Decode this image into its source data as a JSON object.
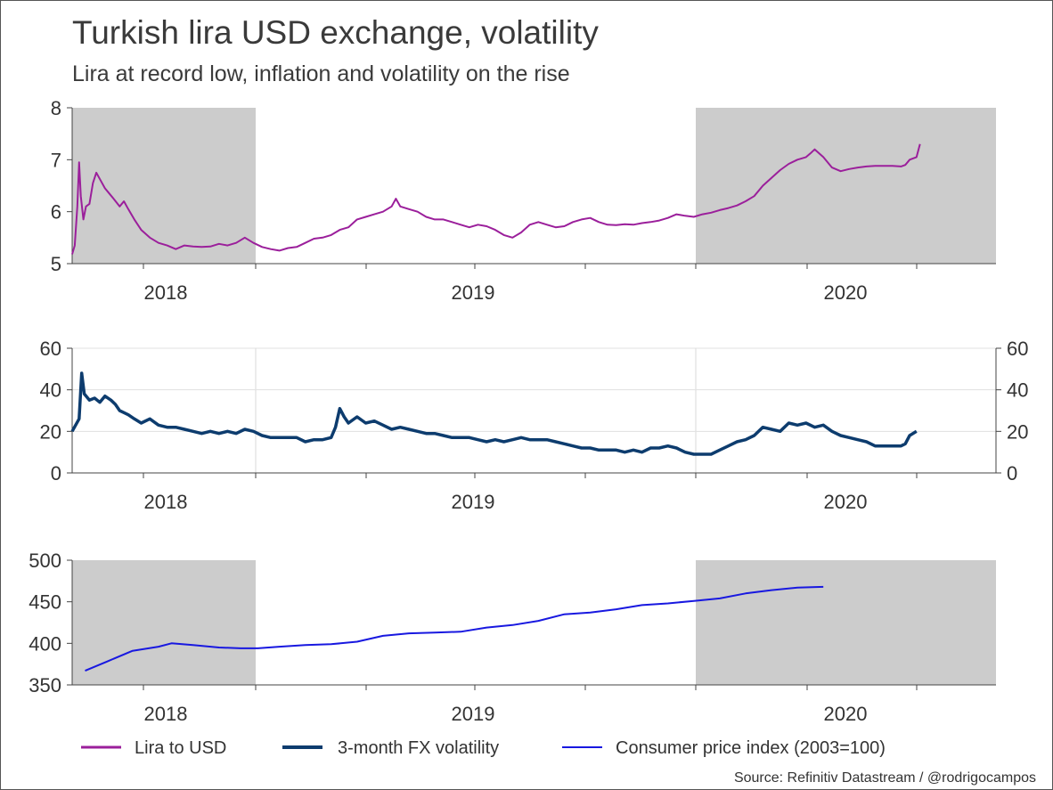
{
  "title": "Turkish lira USD exchange, volatility",
  "subtitle": "Lira at record low, inflation and volatility on the rise",
  "source": "Source: Refinitiv Datastream  / @rodrigocampos",
  "colors": {
    "lira": "#9b1f9b",
    "vol": "#0d3c6e",
    "cpi": "#1818e0",
    "shade": "#cccccc"
  },
  "chart_data": [
    {
      "type": "line",
      "name": "lira",
      "series_name": "Lira to USD",
      "ylim": [
        5,
        8
      ],
      "yticks": [
        "5",
        "6",
        "7",
        "8"
      ],
      "xlabels": [
        "2018",
        "2019",
        "2020"
      ],
      "shaded_periods": [
        [
          "2017-10",
          "2018-04"
        ],
        [
          "2019-07",
          "2020-05"
        ]
      ],
      "points": [
        [
          0.0,
          5.18
        ],
        [
          0.03,
          5.35
        ],
        [
          0.06,
          6.1
        ],
        [
          0.08,
          6.95
        ],
        [
          0.1,
          6.3
        ],
        [
          0.13,
          5.85
        ],
        [
          0.16,
          6.1
        ],
        [
          0.2,
          6.15
        ],
        [
          0.24,
          6.55
        ],
        [
          0.28,
          6.75
        ],
        [
          0.33,
          6.6
        ],
        [
          0.38,
          6.45
        ],
        [
          0.43,
          6.35
        ],
        [
          0.48,
          6.25
        ],
        [
          0.55,
          6.1
        ],
        [
          0.6,
          6.2
        ],
        [
          0.65,
          6.05
        ],
        [
          0.72,
          5.85
        ],
        [
          0.8,
          5.65
        ],
        [
          0.9,
          5.5
        ],
        [
          1.0,
          5.4
        ],
        [
          1.1,
          5.35
        ],
        [
          1.2,
          5.28
        ],
        [
          1.3,
          5.35
        ],
        [
          1.4,
          5.33
        ],
        [
          1.5,
          5.32
        ],
        [
          1.6,
          5.33
        ],
        [
          1.7,
          5.38
        ],
        [
          1.8,
          5.35
        ],
        [
          1.9,
          5.4
        ],
        [
          2.0,
          5.5
        ],
        [
          2.1,
          5.4
        ],
        [
          2.2,
          5.32
        ],
        [
          2.3,
          5.28
        ],
        [
          2.4,
          5.25
        ],
        [
          2.5,
          5.3
        ],
        [
          2.6,
          5.32
        ],
        [
          2.7,
          5.4
        ],
        [
          2.8,
          5.48
        ],
        [
          2.9,
          5.5
        ],
        [
          3.0,
          5.55
        ],
        [
          3.1,
          5.65
        ],
        [
          3.2,
          5.7
        ],
        [
          3.3,
          5.85
        ],
        [
          3.4,
          5.9
        ],
        [
          3.5,
          5.95
        ],
        [
          3.6,
          6.0
        ],
        [
          3.7,
          6.1
        ],
        [
          3.75,
          6.25
        ],
        [
          3.8,
          6.1
        ],
        [
          3.9,
          6.05
        ],
        [
          4.0,
          6.0
        ],
        [
          4.1,
          5.9
        ],
        [
          4.2,
          5.85
        ],
        [
          4.3,
          5.85
        ],
        [
          4.4,
          5.8
        ],
        [
          4.5,
          5.75
        ],
        [
          4.6,
          5.7
        ],
        [
          4.7,
          5.75
        ],
        [
          4.8,
          5.72
        ],
        [
          4.9,
          5.65
        ],
        [
          5.0,
          5.55
        ],
        [
          5.1,
          5.5
        ],
        [
          5.2,
          5.6
        ],
        [
          5.3,
          5.75
        ],
        [
          5.4,
          5.8
        ],
        [
          5.5,
          5.75
        ],
        [
          5.6,
          5.7
        ],
        [
          5.7,
          5.72
        ],
        [
          5.8,
          5.8
        ],
        [
          5.9,
          5.85
        ],
        [
          6.0,
          5.88
        ],
        [
          6.1,
          5.8
        ],
        [
          6.2,
          5.75
        ],
        [
          6.3,
          5.74
        ],
        [
          6.4,
          5.76
        ],
        [
          6.5,
          5.75
        ],
        [
          6.6,
          5.78
        ],
        [
          6.7,
          5.8
        ],
        [
          6.8,
          5.83
        ],
        [
          6.9,
          5.88
        ],
        [
          7.0,
          5.95
        ],
        [
          7.1,
          5.92
        ],
        [
          7.2,
          5.9
        ],
        [
          7.3,
          5.95
        ],
        [
          7.4,
          5.98
        ],
        [
          7.5,
          6.03
        ],
        [
          7.6,
          6.07
        ],
        [
          7.7,
          6.12
        ],
        [
          7.8,
          6.2
        ],
        [
          7.9,
          6.3
        ],
        [
          8.0,
          6.5
        ],
        [
          8.1,
          6.65
        ],
        [
          8.2,
          6.8
        ],
        [
          8.3,
          6.92
        ],
        [
          8.4,
          7.0
        ],
        [
          8.5,
          7.05
        ],
        [
          8.55,
          7.12
        ],
        [
          8.6,
          7.2
        ],
        [
          8.7,
          7.05
        ],
        [
          8.8,
          6.85
        ],
        [
          8.9,
          6.78
        ],
        [
          9.0,
          6.82
        ],
        [
          9.1,
          6.85
        ],
        [
          9.2,
          6.87
        ],
        [
          9.3,
          6.88
        ],
        [
          9.4,
          6.88
        ],
        [
          9.5,
          6.88
        ],
        [
          9.6,
          6.87
        ],
        [
          9.65,
          6.9
        ],
        [
          9.7,
          7.0
        ],
        [
          9.78,
          7.05
        ],
        [
          9.82,
          7.3
        ]
      ]
    },
    {
      "type": "line",
      "name": "vol",
      "series_name": "3-month FX volatility",
      "ylim": [
        0,
        60
      ],
      "yticks": [
        "0",
        "20",
        "40",
        "60"
      ],
      "xlabels": [
        "2018",
        "2019",
        "2020"
      ],
      "points": [
        [
          0.0,
          20
        ],
        [
          0.04,
          23
        ],
        [
          0.08,
          26
        ],
        [
          0.11,
          48
        ],
        [
          0.14,
          38
        ],
        [
          0.2,
          35
        ],
        [
          0.26,
          36
        ],
        [
          0.32,
          34
        ],
        [
          0.38,
          37
        ],
        [
          0.45,
          35
        ],
        [
          0.5,
          33
        ],
        [
          0.55,
          30
        ],
        [
          0.6,
          29
        ],
        [
          0.65,
          28
        ],
        [
          0.72,
          26
        ],
        [
          0.8,
          24
        ],
        [
          0.9,
          26
        ],
        [
          1.0,
          23
        ],
        [
          1.1,
          22
        ],
        [
          1.2,
          22
        ],
        [
          1.3,
          21
        ],
        [
          1.4,
          20
        ],
        [
          1.5,
          19
        ],
        [
          1.6,
          20
        ],
        [
          1.7,
          19
        ],
        [
          1.8,
          20
        ],
        [
          1.9,
          19
        ],
        [
          2.0,
          21
        ],
        [
          2.1,
          20
        ],
        [
          2.2,
          18
        ],
        [
          2.3,
          17
        ],
        [
          2.4,
          17
        ],
        [
          2.5,
          17
        ],
        [
          2.6,
          17
        ],
        [
          2.7,
          15
        ],
        [
          2.8,
          16
        ],
        [
          2.9,
          16
        ],
        [
          3.0,
          17
        ],
        [
          3.05,
          22
        ],
        [
          3.1,
          31
        ],
        [
          3.15,
          27
        ],
        [
          3.2,
          24
        ],
        [
          3.3,
          27
        ],
        [
          3.4,
          24
        ],
        [
          3.5,
          25
        ],
        [
          3.6,
          23
        ],
        [
          3.7,
          21
        ],
        [
          3.8,
          22
        ],
        [
          3.9,
          21
        ],
        [
          4.0,
          20
        ],
        [
          4.1,
          19
        ],
        [
          4.2,
          19
        ],
        [
          4.3,
          18
        ],
        [
          4.4,
          17
        ],
        [
          4.5,
          17
        ],
        [
          4.6,
          17
        ],
        [
          4.7,
          16
        ],
        [
          4.8,
          15
        ],
        [
          4.9,
          16
        ],
        [
          5.0,
          15
        ],
        [
          5.1,
          16
        ],
        [
          5.2,
          17
        ],
        [
          5.3,
          16
        ],
        [
          5.4,
          16
        ],
        [
          5.5,
          16
        ],
        [
          5.6,
          15
        ],
        [
          5.7,
          14
        ],
        [
          5.8,
          13
        ],
        [
          5.9,
          12
        ],
        [
          6.0,
          12
        ],
        [
          6.1,
          11
        ],
        [
          6.2,
          11
        ],
        [
          6.3,
          11
        ],
        [
          6.4,
          10
        ],
        [
          6.5,
          11
        ],
        [
          6.6,
          10
        ],
        [
          6.7,
          12
        ],
        [
          6.8,
          12
        ],
        [
          6.9,
          13
        ],
        [
          7.0,
          12
        ],
        [
          7.1,
          10
        ],
        [
          7.2,
          9
        ],
        [
          7.3,
          9
        ],
        [
          7.4,
          9
        ],
        [
          7.5,
          11
        ],
        [
          7.6,
          13
        ],
        [
          7.7,
          15
        ],
        [
          7.8,
          16
        ],
        [
          7.9,
          18
        ],
        [
          8.0,
          22
        ],
        [
          8.1,
          21
        ],
        [
          8.2,
          20
        ],
        [
          8.3,
          24
        ],
        [
          8.4,
          23
        ],
        [
          8.5,
          24
        ],
        [
          8.6,
          22
        ],
        [
          8.7,
          23
        ],
        [
          8.8,
          20
        ],
        [
          8.9,
          18
        ],
        [
          9.0,
          17
        ],
        [
          9.1,
          16
        ],
        [
          9.2,
          15
        ],
        [
          9.3,
          13
        ],
        [
          9.4,
          13
        ],
        [
          9.5,
          13
        ],
        [
          9.6,
          13
        ],
        [
          9.65,
          14
        ],
        [
          9.7,
          18
        ],
        [
          9.78,
          20
        ]
      ]
    },
    {
      "type": "line",
      "name": "cpi",
      "series_name": "Consumer price index (2003=100)",
      "ylim": [
        350,
        500
      ],
      "yticks": [
        "350",
        "400",
        "450",
        "500"
      ],
      "xlabels": [
        "2018",
        "2019",
        "2020"
      ],
      "shaded_periods": [
        [
          "2017-10",
          "2018-04"
        ],
        [
          "2019-07",
          "2020-05"
        ]
      ],
      "points": [
        [
          0.15,
          367
        ],
        [
          0.4,
          378
        ],
        [
          0.7,
          391
        ],
        [
          1.0,
          396
        ],
        [
          1.15,
          400
        ],
        [
          1.4,
          398
        ],
        [
          1.7,
          395
        ],
        [
          1.95,
          394
        ],
        [
          2.15,
          394
        ],
        [
          2.4,
          396
        ],
        [
          2.7,
          398
        ],
        [
          3.0,
          399
        ],
        [
          3.3,
          402
        ],
        [
          3.6,
          409
        ],
        [
          3.9,
          412
        ],
        [
          4.2,
          413
        ],
        [
          4.5,
          414
        ],
        [
          4.8,
          419
        ],
        [
          5.1,
          422
        ],
        [
          5.4,
          427
        ],
        [
          5.7,
          435
        ],
        [
          6.0,
          437
        ],
        [
          6.3,
          441
        ],
        [
          6.6,
          446
        ],
        [
          6.9,
          448
        ],
        [
          7.2,
          451
        ],
        [
          7.5,
          454
        ],
        [
          7.8,
          460
        ],
        [
          8.1,
          464
        ],
        [
          8.4,
          467
        ],
        [
          8.7,
          468
        ]
      ]
    }
  ],
  "legend": [
    {
      "label": "Lira to USD",
      "color": "#9b1f9b"
    },
    {
      "label": "3-month FX volatility",
      "color": "#0d3c6e"
    },
    {
      "label": "Consumer price index (2003=100)",
      "color": "#1818e0"
    }
  ]
}
